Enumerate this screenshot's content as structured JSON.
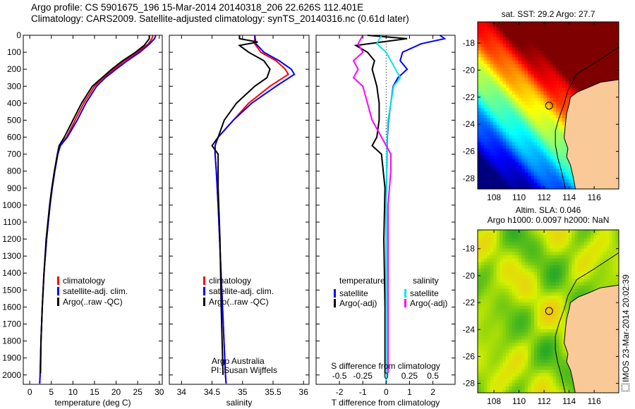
{
  "title": {
    "line1": "Argo profile: CS 5901675_196 15-Mar-2014 20140318_206 22.626S 112.401E",
    "line2": "Climatology: CARS2009. Satellite-adjusted climatology: synTS_20140316.nc (0.61d later)"
  },
  "side_label": "IMOS 23-Mar-2014 20:02:39",
  "colors": {
    "climatology": "#ff0000",
    "satellite": "#0000ff",
    "argo": "#000000",
    "s_satellite": "#00e5ee",
    "s_argo": "#ff00ff",
    "land": "#f9c997"
  },
  "chart_data": [
    {
      "type": "line",
      "id": "temperature",
      "xlabel": "temperature (deg C)",
      "xlim": [
        -1.5,
        30.7
      ],
      "ylim": [
        0,
        2055
      ],
      "xticks": [
        0,
        5,
        10,
        15,
        20,
        25,
        30
      ],
      "yticks": [
        0,
        100,
        200,
        300,
        400,
        500,
        600,
        700,
        800,
        900,
        1000,
        1100,
        1200,
        1300,
        1400,
        1500,
        1600,
        1700,
        1800,
        1900,
        2000
      ],
      "legend": [
        "climatology",
        "satellite-adj. clim.",
        "Argo(..raw -QC)"
      ],
      "series": [
        {
          "name": "climatology",
          "color": "#ff0000",
          "depth": [
            0,
            20,
            50,
            100,
            150,
            200,
            250,
            300,
            400,
            500,
            600,
            650,
            700,
            800,
            900,
            1000,
            1200,
            1400,
            1600,
            1800,
            2000,
            2050
          ],
          "values": [
            28.5,
            28.3,
            27.5,
            25,
            22,
            19.5,
            17,
            15,
            12.5,
            10.5,
            8.5,
            7,
            6.5,
            5.8,
            5.2,
            4.7,
            3.9,
            3.3,
            2.9,
            2.6,
            2.4,
            2.3
          ]
        },
        {
          "name": "satellite-adj. clim.",
          "color": "#0000ff",
          "depth": [
            0,
            20,
            50,
            100,
            150,
            200,
            250,
            300,
            400,
            500,
            600,
            650,
            700,
            800,
            900,
            1000,
            1200,
            1400,
            1600,
            1800,
            2000,
            2050
          ],
          "values": [
            29.2,
            28.9,
            27.8,
            25.5,
            22.6,
            20,
            17.5,
            15.5,
            13,
            11,
            8.7,
            7.1,
            6.5,
            5.8,
            5.2,
            4.7,
            3.9,
            3.3,
            2.9,
            2.6,
            2.4,
            2.3
          ]
        },
        {
          "name": "Argo(..raw -QC)",
          "color": "#000000",
          "depth": [
            0,
            20,
            60,
            100,
            150,
            200,
            300,
            400,
            500,
            600,
            650,
            700,
            800,
            900,
            1000,
            1200,
            1400,
            1600,
            1800,
            1990
          ],
          "values": [
            27.7,
            27.7,
            26.5,
            24.5,
            21.5,
            19,
            14.5,
            12,
            10,
            8,
            6.8,
            6.4,
            5.7,
            5.1,
            4.6,
            3.8,
            3.3,
            2.9,
            2.6,
            2.5
          ]
        }
      ]
    },
    {
      "type": "line",
      "id": "salinity",
      "xlabel": "salinity",
      "xlim": [
        33.8,
        36.09
      ],
      "ylim": [
        0,
        2055
      ],
      "xticks": [
        34,
        34.5,
        35,
        35.5,
        36
      ],
      "legend": [
        "climatology",
        "satellite-adj. clim.",
        "Argo(..raw -QC)"
      ],
      "annotation": [
        "Argo Australia",
        "PI: Susan Wijffels"
      ],
      "series": [
        {
          "name": "climatology",
          "color": "#ff0000",
          "depth": [
            0,
            50,
            100,
            150,
            200,
            230,
            300,
            400,
            500,
            600,
            650,
            700,
            800,
            1000,
            1500,
            2000,
            2050
          ],
          "values": [
            35.2,
            35.2,
            35.3,
            35.55,
            35.7,
            35.75,
            35.45,
            35.1,
            34.85,
            34.6,
            34.55,
            34.55,
            34.57,
            34.6,
            34.66,
            34.72,
            34.73
          ]
        },
        {
          "name": "satellite-adj. clim.",
          "color": "#0000ff",
          "depth": [
            0,
            50,
            100,
            150,
            200,
            230,
            300,
            400,
            500,
            600,
            650,
            700,
            800,
            1000,
            1500,
            2000,
            2050
          ],
          "values": [
            35.2,
            35.22,
            35.35,
            35.6,
            35.8,
            35.85,
            35.55,
            35.15,
            34.85,
            34.6,
            34.55,
            34.55,
            34.57,
            34.6,
            34.66,
            34.72,
            34.73
          ]
        },
        {
          "name": "Argo(..raw -QC)",
          "color": "#000000",
          "depth": [
            0,
            20,
            40,
            60,
            100,
            150,
            200,
            250,
            300,
            400,
            500,
            600,
            650,
            700,
            900,
            1200,
            1600,
            2000
          ],
          "values": [
            34.95,
            34.95,
            35.25,
            34.95,
            35.1,
            35.35,
            35.45,
            35.4,
            35.2,
            34.9,
            34.7,
            34.6,
            34.5,
            34.6,
            34.6,
            34.63,
            34.65,
            34.68
          ]
        }
      ]
    },
    {
      "type": "line",
      "id": "differences",
      "xlabel": "T difference from climatology",
      "xlabel2": "S difference from climatology",
      "xlim": [
        -3.0,
        2.95
      ],
      "ylim": [
        0,
        2055
      ],
      "xticks": [
        -2,
        -1,
        0,
        1,
        2
      ],
      "xticks2": [
        -0.5,
        -0.25,
        0,
        0.25,
        0.5
      ],
      "legend_temperature": {
        "title": "temperature",
        "items": [
          "satellite",
          "Argo(-adj)"
        ]
      },
      "legend_salinity": {
        "title": "salinity",
        "items": [
          "satellite",
          "Argo(-adj)"
        ]
      },
      "series": [
        {
          "name": "T satellite",
          "color": "#0000ff",
          "scale": 1,
          "depth": [
            0,
            20,
            50,
            100,
            150,
            200,
            250,
            300,
            400,
            500,
            600,
            1000,
            2050
          ],
          "values": [
            2.3,
            2.5,
            1.5,
            0.7,
            0.6,
            0.9,
            0.5,
            0.3,
            0.2,
            0.1,
            0.05,
            0.0,
            0.0
          ]
        },
        {
          "name": "T Argo(-adj)",
          "color": "#000000",
          "scale": 1,
          "depth": [
            0,
            20,
            40,
            60,
            100,
            150,
            200,
            300,
            400,
            500,
            600,
            650,
            700,
            900,
            1200,
            1600,
            1990
          ],
          "values": [
            -0.8,
            0.9,
            -0.2,
            -1.3,
            -0.8,
            -0.5,
            -0.6,
            -0.4,
            -0.3,
            -0.3,
            -0.4,
            -0.6,
            -0.2,
            -0.05,
            -0.1,
            -0.05,
            -0.05
          ]
        },
        {
          "name": "S satellite",
          "color": "#00e5ee",
          "scale": 4,
          "depth": [
            0,
            50,
            100,
            150,
            200,
            250,
            300,
            400,
            500,
            600,
            1000,
            2050
          ],
          "values": [
            -0.05,
            -0.1,
            0,
            0.05,
            0.1,
            0.15,
            0.08,
            0.05,
            0.02,
            0.01,
            0,
            0
          ]
        },
        {
          "name": "S Argo(-adj)",
          "color": "#ff00ff",
          "scale": 4,
          "depth": [
            0,
            50,
            100,
            150,
            200,
            250,
            300,
            400,
            500,
            600,
            700,
            800,
            1000,
            1500,
            1990
          ],
          "values": [
            -0.25,
            -0.3,
            -0.25,
            -0.35,
            -0.3,
            -0.35,
            -0.25,
            -0.2,
            -0.15,
            -0.05,
            0.05,
            0.05,
            0.02,
            0.02,
            0.02
          ]
        }
      ]
    },
    {
      "type": "heatmap",
      "id": "sst-map",
      "title": "sat. SST: 29.2 Argo: 27.7",
      "xlim": [
        106.7,
        117.96
      ],
      "ylim": [
        -28.78,
        -16.44
      ],
      "xticks": [
        108,
        110,
        112,
        114,
        116
      ],
      "yticks": [
        -18,
        -20,
        -22,
        -24,
        -26,
        -28
      ],
      "argo_position": [
        112.401,
        -22.626
      ]
    },
    {
      "type": "heatmap",
      "id": "sla-map",
      "title_line1": "Altim. SLA: 0.046",
      "title_line2": "Argo h1000: 0.0097 h2000: NaN",
      "xlim": [
        106.7,
        117.96
      ],
      "ylim": [
        -28.7,
        -16.6
      ],
      "xticks": [
        108,
        110,
        112,
        114,
        116
      ],
      "yticks": [
        -18,
        -20,
        -22,
        -24,
        -26,
        -28
      ],
      "argo_position": [
        112.401,
        -22.626
      ]
    }
  ]
}
